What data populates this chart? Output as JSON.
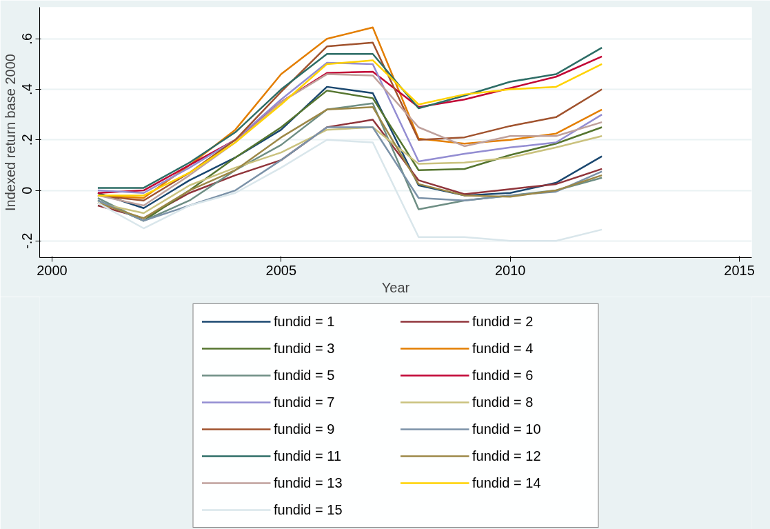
{
  "chart_data": {
    "type": "line",
    "xlabel": "Year",
    "ylabel": "Indexed return base 2000",
    "x": [
      2001,
      2002,
      2003,
      2004,
      2005,
      2006,
      2007,
      2008,
      2009,
      2010,
      2011,
      2012
    ],
    "xlim": [
      1999.73,
      2015.27
    ],
    "xticks": [
      2000,
      2005,
      2010,
      2015
    ],
    "ylim": [
      -0.266,
      0.725
    ],
    "yticks": [
      {
        "value": 0.6,
        "label": ".6"
      },
      {
        "value": 0.4,
        "label": ".4"
      },
      {
        "value": 0.2,
        "label": ".2"
      },
      {
        "value": 0,
        "label": "0"
      },
      {
        "value": -0.2,
        "label": "-.2"
      }
    ],
    "grid": "y",
    "legend": "bottom",
    "marker": "none",
    "line_style": "solid",
    "series": [
      {
        "name": "fundid = 1",
        "color": "#1a476f",
        "values": [
          -0.01,
          -0.07,
          0.04,
          0.13,
          0.24,
          0.41,
          0.385,
          0.02,
          -0.02,
          -0.01,
          0.03,
          0.135
        ]
      },
      {
        "name": "fundid = 2",
        "color": "#90353b",
        "values": [
          -0.06,
          -0.11,
          -0.01,
          0.06,
          0.12,
          0.25,
          0.28,
          0.04,
          -0.015,
          0.005,
          0.025,
          0.085
        ]
      },
      {
        "name": "fundid = 3",
        "color": "#55752f",
        "values": [
          -0.04,
          -0.12,
          0.0,
          0.13,
          0.25,
          0.395,
          0.365,
          0.08,
          0.085,
          0.14,
          0.185,
          0.25
        ]
      },
      {
        "name": "fundid = 4",
        "color": "#e37e00",
        "values": [
          -0.02,
          -0.03,
          0.1,
          0.24,
          0.46,
          0.6,
          0.645,
          0.205,
          0.185,
          0.2,
          0.225,
          0.32
        ]
      },
      {
        "name": "fundid = 5",
        "color": "#6e8e84",
        "values": [
          -0.03,
          -0.12,
          -0.04,
          0.08,
          0.18,
          0.32,
          0.345,
          -0.075,
          -0.04,
          -0.02,
          0.0,
          0.05
        ]
      },
      {
        "name": "fundid = 6",
        "color": "#c10534",
        "values": [
          -0.01,
          0.0,
          0.1,
          0.2,
          0.35,
          0.465,
          0.47,
          0.33,
          0.36,
          0.405,
          0.45,
          0.53
        ]
      },
      {
        "name": "fundid = 7",
        "color": "#938dd2",
        "values": [
          0.0,
          -0.01,
          0.09,
          0.2,
          0.36,
          0.505,
          0.5,
          0.115,
          0.145,
          0.17,
          0.19,
          0.3
        ]
      },
      {
        "name": "fundid = 8",
        "color": "#cac27e",
        "values": [
          -0.05,
          -0.09,
          0.02,
          0.09,
          0.15,
          0.24,
          0.25,
          0.105,
          0.11,
          0.13,
          0.17,
          0.215
        ]
      },
      {
        "name": "fundid = 9",
        "color": "#a0522d",
        "values": [
          -0.02,
          -0.04,
          0.07,
          0.2,
          0.39,
          0.57,
          0.585,
          0.2,
          0.21,
          0.255,
          0.29,
          0.4
        ]
      },
      {
        "name": "fundid = 10",
        "color": "#7b92a8",
        "values": [
          -0.04,
          -0.12,
          -0.06,
          0.0,
          0.12,
          0.25,
          0.25,
          -0.03,
          -0.04,
          -0.02,
          -0.005,
          0.075
        ]
      },
      {
        "name": "fundid = 11",
        "color": "#2d6d66",
        "values": [
          0.01,
          0.01,
          0.11,
          0.23,
          0.4,
          0.54,
          0.54,
          0.325,
          0.375,
          0.43,
          0.46,
          0.565
        ]
      },
      {
        "name": "fundid = 12",
        "color": "#9c8847",
        "values": [
          -0.05,
          -0.11,
          0.0,
          0.08,
          0.21,
          0.32,
          0.33,
          0.025,
          -0.02,
          -0.025,
          0.0,
          0.06
        ]
      },
      {
        "name": "fundid = 13",
        "color": "#bfa19c",
        "values": [
          -0.02,
          -0.06,
          0.06,
          0.19,
          0.35,
          0.46,
          0.455,
          0.25,
          0.175,
          0.215,
          0.215,
          0.27
        ]
      },
      {
        "name": "fundid = 14",
        "color": "#ffd200",
        "values": [
          -0.02,
          -0.02,
          0.07,
          0.19,
          0.34,
          0.5,
          0.515,
          0.34,
          0.38,
          0.4,
          0.41,
          0.5
        ]
      },
      {
        "name": "fundid = 15",
        "color": "#d9e6eb",
        "values": [
          -0.05,
          -0.15,
          -0.06,
          -0.01,
          0.09,
          0.2,
          0.19,
          -0.185,
          -0.185,
          -0.2,
          -0.2,
          -0.155
        ]
      }
    ]
  }
}
